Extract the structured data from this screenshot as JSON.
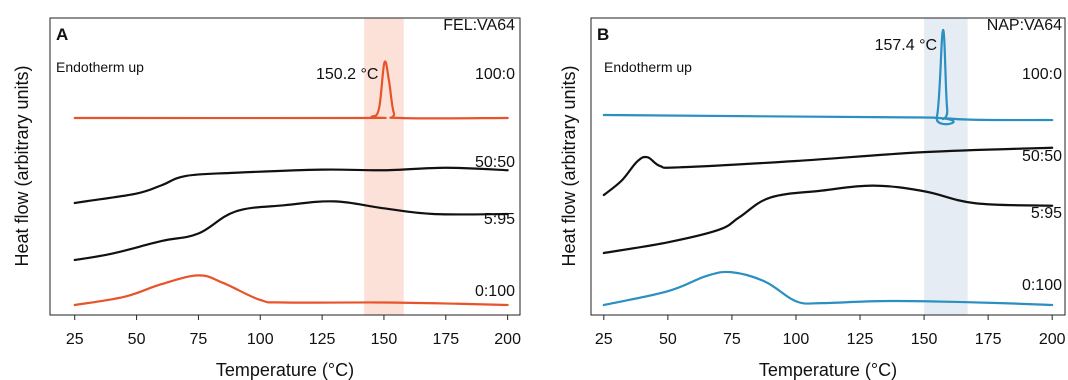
{
  "colors": {
    "fel": "#e8532a",
    "nap": "#2a8fc1",
    "black": "#111111",
    "fel_band": "#fbe1d8",
    "nap_band": "#e6ecf4"
  },
  "chart_data": [
    {
      "type": "line",
      "panel": "A",
      "title": "FEL:VA64",
      "note": "Endotherm up",
      "xlabel": "Temperature (°C)",
      "ylabel": "Heat flow (arbitrary units)",
      "xlim": [
        15,
        205
      ],
      "xticks": [
        25,
        50,
        75,
        100,
        125,
        150,
        175,
        200
      ],
      "highlight": {
        "x_range": [
          142,
          158
        ],
        "color": "#fbe1d8"
      },
      "peak_label": {
        "text": "150.2 °C",
        "x": 150.2
      },
      "series": [
        {
          "name": "100:0",
          "color": "#e8532a",
          "points": [
            [
              25,
              0
            ],
            [
              140,
              0
            ],
            [
              145,
              0.2
            ],
            [
              148,
              1.5
            ],
            [
              150.2,
              8.8
            ],
            [
              152,
              6
            ],
            [
              154,
              0.8
            ],
            [
              157,
              0
            ],
            [
              200,
              0
            ]
          ]
        },
        {
          "name": "50:50",
          "color": "#111111",
          "points": [
            [
              25,
              0
            ],
            [
              30,
              0.3
            ],
            [
              50,
              1.5
            ],
            [
              60,
              2.8
            ],
            [
              70,
              4.3
            ],
            [
              90,
              4.8
            ],
            [
              125,
              5.3
            ],
            [
              150,
              5.2
            ],
            [
              175,
              5.6
            ],
            [
              200,
              5.2
            ]
          ]
        },
        {
          "name": "5:95",
          "color": "#111111",
          "points": [
            [
              25,
              0
            ],
            [
              40,
              1
            ],
            [
              60,
              3
            ],
            [
              75,
              4.2
            ],
            [
              90,
              7.7
            ],
            [
              110,
              8.7
            ],
            [
              130,
              9.3
            ],
            [
              150,
              8.2
            ],
            [
              170,
              7.3
            ],
            [
              200,
              7.3
            ]
          ]
        },
        {
          "name": "0:100",
          "color": "#e8532a",
          "points": [
            [
              25,
              0
            ],
            [
              45,
              1.3
            ],
            [
              60,
              3.3
            ],
            [
              75,
              4.7
            ],
            [
              85,
              3.5
            ],
            [
              100,
              0.8
            ],
            [
              110,
              0.4
            ],
            [
              150,
              0.4
            ],
            [
              180,
              0.2
            ],
            [
              200,
              0
            ]
          ]
        }
      ]
    },
    {
      "type": "line",
      "panel": "B",
      "title": "NAP:VA64",
      "note": "Endotherm up",
      "xlabel": "Temperature (°C)",
      "ylabel": "Heat flow (arbitrary units)",
      "xlim": [
        20,
        205
      ],
      "xticks": [
        25,
        50,
        75,
        100,
        125,
        150,
        175,
        200
      ],
      "highlight": {
        "x_range": [
          150,
          167
        ],
        "color": "#e6ecf4"
      },
      "peak_label": {
        "text": "157.4 °C",
        "x": 157.4
      },
      "series": [
        {
          "name": "100:0",
          "color": "#2a8fc1",
          "points": [
            [
              25,
              0
            ],
            [
              150,
              -0.4
            ],
            [
              155,
              -0.3
            ],
            [
              157.4,
              13.5
            ],
            [
              159,
              1
            ],
            [
              161,
              -0.6
            ],
            [
              200,
              -0.8
            ]
          ]
        },
        {
          "name": "50:50",
          "color": "#111111",
          "points": [
            [
              25,
              0
            ],
            [
              32,
              2.3
            ],
            [
              38,
              5.3
            ],
            [
              42,
              6
            ],
            [
              47,
              4.6
            ],
            [
              55,
              4.4
            ],
            [
              100,
              5.4
            ],
            [
              150,
              6.8
            ],
            [
              200,
              7.5
            ]
          ]
        },
        {
          "name": "5:95",
          "color": "#111111",
          "points": [
            [
              25,
              0
            ],
            [
              50,
              1.7
            ],
            [
              70,
              3.7
            ],
            [
              78,
              5.7
            ],
            [
              90,
              8.8
            ],
            [
              110,
              9.9
            ],
            [
              130,
              10.7
            ],
            [
              150,
              9.8
            ],
            [
              170,
              7.9
            ],
            [
              200,
              7.5
            ]
          ]
        },
        {
          "name": "0:100",
          "color": "#2a8fc1",
          "points": [
            [
              25,
              0
            ],
            [
              50,
              2.2
            ],
            [
              65,
              4.6
            ],
            [
              75,
              5.2
            ],
            [
              88,
              3.7
            ],
            [
              100,
              0.6
            ],
            [
              110,
              0.3
            ],
            [
              130,
              0.6
            ],
            [
              150,
              0.6
            ],
            [
              180,
              0.3
            ],
            [
              200,
              0
            ]
          ]
        }
      ]
    }
  ]
}
